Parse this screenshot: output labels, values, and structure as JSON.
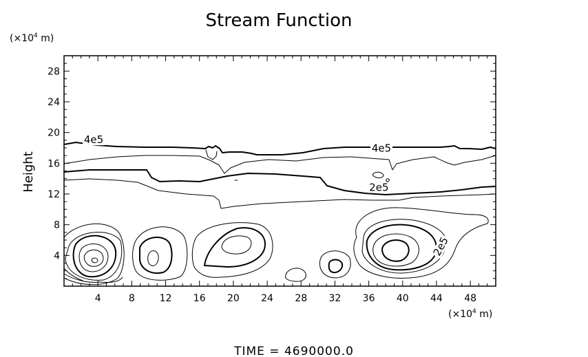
{
  "chart_data": {
    "type": "contour",
    "title": "Stream Function",
    "ylabel": "Height",
    "y_unit_base": "(×10",
    "y_unit_exp": "4",
    "y_unit_tail": " m)",
    "x_unit_base": "(×10",
    "x_unit_exp": "4",
    "x_unit_tail": " m)",
    "xlim": [
      0,
      51
    ],
    "ylim": [
      0,
      30
    ],
    "x_ticks": [
      "4",
      "8",
      "12",
      "16",
      "20",
      "24",
      "28",
      "32",
      "36",
      "40",
      "44",
      "48"
    ],
    "y_ticks": [
      "4",
      "8",
      "12",
      "16",
      "20",
      "24",
      "28"
    ],
    "contour_labels": [
      {
        "text": "4e5",
        "x": 3.5,
        "y": 18.7
      },
      {
        "text": "4e5",
        "x": 37.5,
        "y": 17.6
      },
      {
        "text": "2e5",
        "x": 37.2,
        "y": 12.5
      },
      {
        "text": "2e5",
        "x": 44.8,
        "y": 5.0,
        "rotate": -62
      }
    ],
    "footer": "TIME  =  4690000.0"
  }
}
